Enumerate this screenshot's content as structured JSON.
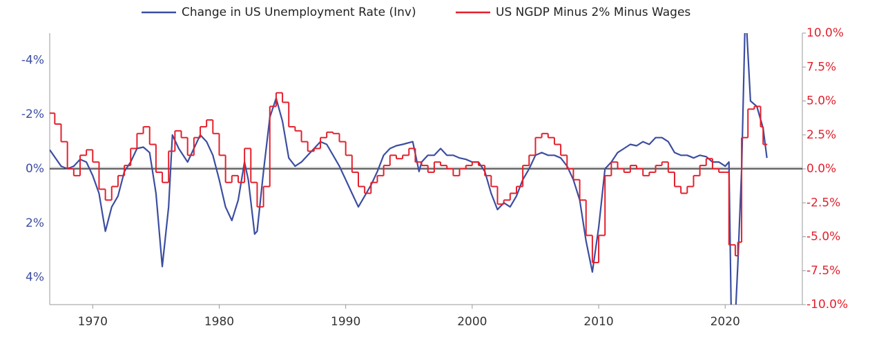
{
  "chart_data": {
    "type": "line",
    "xlim": [
      1966.6,
      2026.1
    ],
    "xticks": [
      1970,
      1980,
      1990,
      2000,
      2010,
      2020
    ],
    "ylim": [
      5,
      -5
    ],
    "yticks": [
      {
        "value": -4,
        "label": "-4%"
      },
      {
        "value": -2,
        "label": "-2%"
      },
      {
        "value": 0,
        "label": "0%"
      },
      {
        "value": 2,
        "label": "2%"
      },
      {
        "value": 4,
        "label": "4%"
      }
    ],
    "y2lim": [
      -10,
      10
    ],
    "y2ticks": [
      {
        "value": 10,
        "label": "10.0%"
      },
      {
        "value": 7.5,
        "label": "7.5%"
      },
      {
        "value": 5,
        "label": "5.0%"
      },
      {
        "value": 2.5,
        "label": "2.5%"
      },
      {
        "value": 0,
        "label": "0.0%"
      },
      {
        "value": -2.5,
        "label": "-2.5%"
      },
      {
        "value": -5,
        "label": "-5.0%"
      },
      {
        "value": -7.5,
        "label": "-7.5%"
      },
      {
        "value": -10,
        "label": "-10.0%"
      }
    ],
    "legend": "top",
    "series": [
      {
        "name": "Change in US Unemployment Rate (Inv)",
        "color": "#3b4da0",
        "axis": "y",
        "x": [
          1966.6,
          1967.5,
          1968,
          1968.5,
          1969,
          1969.5,
          1970,
          1970.5,
          1971,
          1971.5,
          1972,
          1972.5,
          1973,
          1973.5,
          1974,
          1974.5,
          1975,
          1975.5,
          1976,
          1976.3,
          1976.8,
          1977.5,
          1978,
          1978.5,
          1979,
          1979.5,
          1980,
          1980.5,
          1981,
          1981.5,
          1982,
          1982.3,
          1982.8,
          1983,
          1983.5,
          1984,
          1984.5,
          1985,
          1985.5,
          1986,
          1986.5,
          1987,
          1987.5,
          1988,
          1988.5,
          1989,
          1989.5,
          1990,
          1990.5,
          1991,
          1991.5,
          1992,
          1992.5,
          1993,
          1993.5,
          1994,
          1994.5,
          1995.3,
          1995.8,
          1996,
          1996.5,
          1997,
          1997.5,
          1998,
          1998.5,
          1999,
          1999.5,
          2000,
          2000.5,
          2001,
          2001.5,
          2002,
          2002.5,
          2003,
          2003.5,
          2004,
          2004.5,
          2005,
          2005.5,
          2006,
          2006.5,
          2007,
          2007.5,
          2008,
          2008.5,
          2009,
          2009.5,
          2010,
          2010.5,
          2011,
          2011.5,
          2012,
          2012.5,
          2013,
          2013.5,
          2014,
          2014.5,
          2015,
          2015.5,
          2016,
          2016.5,
          2017,
          2017.5,
          2018,
          2018.5,
          2019,
          2019.5,
          2020,
          2020.3,
          2020.5,
          2020.8,
          2021,
          2021.3,
          2021.6,
          2022,
          2022.5,
          2023,
          2023.3
        ],
        "values": [
          -0.7,
          -0.1,
          0,
          -0.1,
          -0.35,
          -0.25,
          0.25,
          0.9,
          2.3,
          1.4,
          1.0,
          0.1,
          -0.25,
          -0.75,
          -0.8,
          -0.6,
          0.9,
          3.6,
          1.4,
          -1.25,
          -0.75,
          -0.25,
          -0.75,
          -1.25,
          -1.0,
          -0.5,
          0.4,
          1.4,
          1.9,
          1.15,
          -0.25,
          0.4,
          2.4,
          2.3,
          0.1,
          -1.9,
          -2.6,
          -1.75,
          -0.4,
          -0.1,
          -0.25,
          -0.5,
          -0.75,
          -1.0,
          -0.9,
          -0.5,
          -0.1,
          0.4,
          0.9,
          1.4,
          1.0,
          0.6,
          0.1,
          -0.5,
          -0.75,
          -0.85,
          -0.9,
          -1.0,
          0.1,
          -0.25,
          -0.5,
          -0.5,
          -0.75,
          -0.5,
          -0.5,
          -0.4,
          -0.35,
          -0.25,
          -0.25,
          0.1,
          0.9,
          1.5,
          1.25,
          1.4,
          1.0,
          0.4,
          0,
          -0.5,
          -0.6,
          -0.5,
          -0.5,
          -0.4,
          -0.1,
          0.4,
          1.15,
          2.65,
          3.8,
          2.15,
          0,
          -0.25,
          -0.6,
          -0.75,
          -0.9,
          -0.85,
          -1.0,
          -0.9,
          -1.15,
          -1.15,
          -1.0,
          -0.6,
          -0.5,
          -0.5,
          -0.4,
          -0.5,
          -0.45,
          -0.25,
          -0.25,
          -0.1,
          -0.25,
          6,
          5.5,
          3.5,
          0,
          -6,
          -2.5,
          -2.3,
          -1.5,
          -0.4
        ]
      },
      {
        "name": "US NGDP Minus 2% Minus Wages",
        "color": "#e3202c",
        "axis": "y2",
        "step": true,
        "x": [
          1966.6,
          1967,
          1967.5,
          1968,
          1968.5,
          1969,
          1969.5,
          1970,
          1970.5,
          1971,
          1971.5,
          1972,
          1972.5,
          1973,
          1973.5,
          1974,
          1974.5,
          1975,
          1975.5,
          1976,
          1976.5,
          1977,
          1977.5,
          1978,
          1978.5,
          1979,
          1979.5,
          1980,
          1980.5,
          1981,
          1981.5,
          1982,
          1982.5,
          1983,
          1983.5,
          1984,
          1984.5,
          1985,
          1985.5,
          1986,
          1986.5,
          1987,
          1987.5,
          1988,
          1988.5,
          1989,
          1989.5,
          1990,
          1990.5,
          1991,
          1991.5,
          1992,
          1992.5,
          1993,
          1993.5,
          1994,
          1994.5,
          1995,
          1995.5,
          1996,
          1996.5,
          1997,
          1997.5,
          1998,
          1998.5,
          1999,
          1999.5,
          2000,
          2000.5,
          2001,
          2001.5,
          2002,
          2002.5,
          2003,
          2003.5,
          2004,
          2004.5,
          2005,
          2005.5,
          2006,
          2006.5,
          2007,
          2007.5,
          2008,
          2008.5,
          2009,
          2009.5,
          2010,
          2010.5,
          2011,
          2011.5,
          2012,
          2012.5,
          2013,
          2013.5,
          2014,
          2014.5,
          2015,
          2015.5,
          2016,
          2016.5,
          2017,
          2017.5,
          2018,
          2018.5,
          2019,
          2019.5,
          2020,
          2020.3,
          2020.8,
          2021,
          2021.3,
          2021.8,
          2022.3,
          2022.8,
          2023
        ],
        "values": [
          4.1,
          3.3,
          2.0,
          0,
          -0.5,
          1.0,
          1.4,
          0.5,
          -1.5,
          -2.3,
          -1.3,
          -0.5,
          0.25,
          1.5,
          2.6,
          3.1,
          1.8,
          -0.25,
          -1.0,
          1.3,
          2.8,
          2.3,
          1.0,
          2.3,
          3.1,
          3.6,
          2.6,
          1.0,
          -1.0,
          -0.5,
          -1.0,
          1.5,
          -1.0,
          -2.8,
          -1.3,
          4.6,
          5.6,
          4.9,
          3.1,
          2.8,
          2.0,
          1.3,
          1.5,
          2.3,
          2.7,
          2.6,
          2.0,
          1.0,
          -0.25,
          -1.3,
          -1.8,
          -1.0,
          -0.5,
          0.25,
          1.0,
          0.75,
          1.0,
          1.5,
          0.5,
          0.25,
          -0.25,
          0.5,
          0.25,
          0,
          -0.5,
          0,
          0.25,
          0.5,
          0.25,
          -0.5,
          -1.3,
          -2.6,
          -2.3,
          -1.8,
          -1.3,
          0.25,
          1.0,
          2.3,
          2.6,
          2.3,
          1.8,
          1.0,
          0,
          -0.8,
          -2.3,
          -4.9,
          -6.9,
          -4.9,
          -0.5,
          0.5,
          0,
          -0.25,
          0.25,
          0,
          -0.5,
          -0.25,
          0.25,
          0.5,
          -0.25,
          -1.3,
          -1.8,
          -1.3,
          -0.5,
          0.25,
          0.75,
          0,
          -0.25,
          -0.25,
          -5.6,
          -6.4,
          -5.4,
          2.3,
          4.4,
          4.6,
          3.1,
          1.8
        ]
      }
    ]
  }
}
